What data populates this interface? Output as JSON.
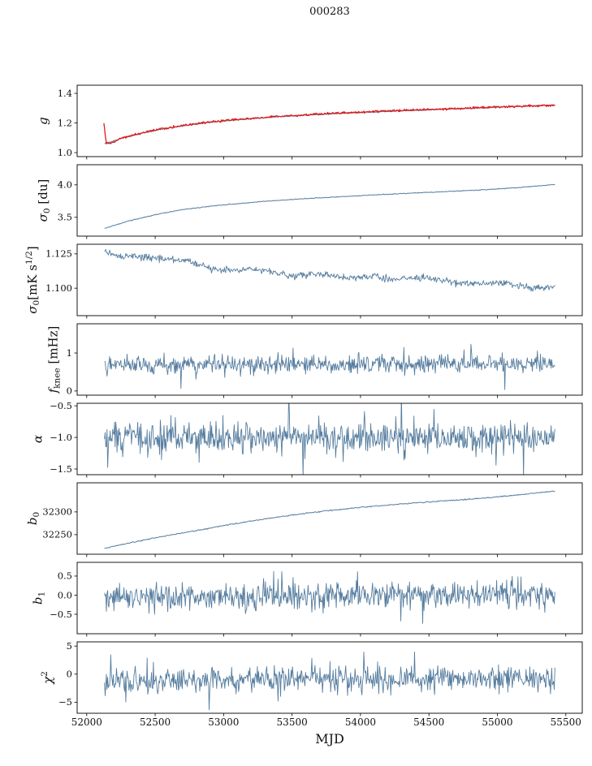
{
  "title": "000283",
  "chart_data": {
    "type": "line",
    "title": "000283",
    "xlabel": "MJD",
    "xlim": [
      51930,
      55620
    ],
    "x_data_range": [
      52130,
      55420
    ],
    "xticks": [
      {
        "v": 52000,
        "label": "52000"
      },
      {
        "v": 52500,
        "label": "52500"
      },
      {
        "v": 53000,
        "label": "53000"
      },
      {
        "v": 53500,
        "label": "53500"
      },
      {
        "v": 54000,
        "label": "54000"
      },
      {
        "v": 54500,
        "label": "54500"
      },
      {
        "v": 55000,
        "label": "55000"
      },
      {
        "v": 55500,
        "label": "55500"
      }
    ],
    "panels": [
      {
        "id": "g",
        "ylabel": [
          {
            "t": "g",
            "i": true
          }
        ],
        "ylim": [
          0.973,
          1.455
        ],
        "yticks": [
          {
            "v": 1.0,
            "label": "1.0"
          },
          {
            "v": 1.2,
            "label": "1.2"
          },
          {
            "v": 1.4,
            "label": "1.4"
          }
        ],
        "series": [
          {
            "name": "gain-model",
            "color": "#567d9f",
            "width": 1.0,
            "noise": 0.0015,
            "n": 500,
            "trend": [
              [
                52130,
                1.06
              ],
              [
                52250,
                1.095
              ],
              [
                52400,
                1.13
              ],
              [
                52550,
                1.158
              ],
              [
                52700,
                1.18
              ],
              [
                52850,
                1.198
              ],
              [
                53000,
                1.213
              ],
              [
                53200,
                1.228
              ],
              [
                53400,
                1.242
              ],
              [
                53600,
                1.252
              ],
              [
                53800,
                1.262
              ],
              [
                54000,
                1.27
              ],
              [
                54200,
                1.278
              ],
              [
                54400,
                1.285
              ],
              [
                54600,
                1.292
              ],
              [
                54800,
                1.299
              ],
              [
                55000,
                1.306
              ],
              [
                55200,
                1.313
              ],
              [
                55420,
                1.322
              ]
            ]
          },
          {
            "name": "gain-data",
            "color": "#dd1c1c",
            "width": 1.3,
            "noise": 0.0035,
            "n": 700,
            "trend": [
              [
                52125,
                1.205
              ],
              [
                52133,
                1.13
              ],
              [
                52142,
                1.065
              ],
              [
                52170,
                1.058
              ],
              [
                52250,
                1.098
              ],
              [
                52400,
                1.133
              ],
              [
                52550,
                1.161
              ],
              [
                52700,
                1.183
              ],
              [
                52850,
                1.201
              ],
              [
                53000,
                1.216
              ],
              [
                53200,
                1.231
              ],
              [
                53400,
                1.245
              ],
              [
                53600,
                1.255
              ],
              [
                53800,
                1.265
              ],
              [
                54000,
                1.273
              ],
              [
                54200,
                1.281
              ],
              [
                54400,
                1.288
              ],
              [
                54600,
                1.295
              ],
              [
                54800,
                1.302
              ],
              [
                55000,
                1.308
              ],
              [
                55200,
                1.314
              ],
              [
                55420,
                1.319
              ]
            ]
          }
        ]
      },
      {
        "id": "sigma0-du",
        "ylabel": [
          {
            "t": "σ",
            "i": true
          },
          {
            "t": "0",
            "s": "sub"
          },
          {
            "t": " [du]"
          }
        ],
        "ylim": [
          3.21,
          4.31
        ],
        "yticks": [
          {
            "v": 3.5,
            "label": "3.5"
          },
          {
            "v": 4.0,
            "label": "4.0"
          }
        ],
        "series": [
          {
            "name": "sigma0-du",
            "color": "#567d9f",
            "width": 1.0,
            "noise": 0.003,
            "n": 600,
            "trend": [
              [
                52130,
                3.33
              ],
              [
                52300,
                3.44
              ],
              [
                52500,
                3.54
              ],
              [
                52700,
                3.62
              ],
              [
                52900,
                3.67
              ],
              [
                53100,
                3.71
              ],
              [
                53300,
                3.745
              ],
              [
                53500,
                3.775
              ],
              [
                53700,
                3.8
              ],
              [
                53900,
                3.822
              ],
              [
                54100,
                3.845
              ],
              [
                54300,
                3.866
              ],
              [
                54500,
                3.885
              ],
              [
                54700,
                3.905
              ],
              [
                54900,
                3.925
              ],
              [
                55100,
                3.95
              ],
              [
                55300,
                3.985
              ],
              [
                55420,
                4.005
              ]
            ]
          }
        ]
      },
      {
        "id": "sigma0-mks",
        "ylabel": [
          {
            "t": "σ",
            "i": true
          },
          {
            "t": "0",
            "s": "sub"
          },
          {
            "t": "[mK s"
          },
          {
            "t": "1/2",
            "s": "sup"
          },
          {
            "t": "]"
          }
        ],
        "ylim": [
          1.08,
          1.132
        ],
        "yticks": [
          {
            "v": 1.1,
            "label": "1.100"
          },
          {
            "v": 1.125,
            "label": "1.125"
          }
        ],
        "series": [
          {
            "name": "sigma0-mks",
            "color": "#567d9f",
            "width": 0.9,
            "noise": 0.0012,
            "n": 700,
            "trend": [
              [
                52130,
                1.1265
              ],
              [
                52250,
                1.1238
              ],
              [
                52400,
                1.1228
              ],
              [
                52550,
                1.1218
              ],
              [
                52650,
                1.1208
              ],
              [
                52750,
                1.1198
              ],
              [
                52900,
                1.114
              ],
              [
                53050,
                1.1128
              ],
              [
                53200,
                1.1138
              ],
              [
                53350,
                1.1118
              ],
              [
                53500,
                1.1088
              ],
              [
                53650,
                1.1105
              ],
              [
                53800,
                1.109
              ],
              [
                53950,
                1.1075
              ],
              [
                54100,
                1.109
              ],
              [
                54250,
                1.106
              ],
              [
                54400,
                1.1075
              ],
              [
                54550,
                1.1065
              ],
              [
                54700,
                1.104
              ],
              [
                54850,
                1.1035
              ],
              [
                55000,
                1.104
              ],
              [
                55150,
                1.1025
              ],
              [
                55250,
                1.1
              ],
              [
                55350,
                1.1005
              ],
              [
                55420,
                1.101
              ]
            ]
          }
        ]
      },
      {
        "id": "fknee",
        "ylabel": [
          {
            "t": "f",
            "i": true
          },
          {
            "t": "knee",
            "s": "sub"
          },
          {
            "t": " [mHz]"
          }
        ],
        "ylim": [
          -0.11,
          1.77
        ],
        "yticks": [
          {
            "v": 0,
            "label": "0"
          },
          {
            "v": 1,
            "label": "1"
          }
        ],
        "series": [
          {
            "name": "fknee",
            "color": "#567d9f",
            "width": 0.9,
            "noise": 0.115,
            "spikes": 0.05,
            "n": 720,
            "trend": [
              [
                52130,
                0.68
              ],
              [
                53500,
                0.7
              ],
              [
                55420,
                0.71
              ]
            ]
          }
        ]
      },
      {
        "id": "alpha",
        "ylabel": [
          {
            "t": "α",
            "i": true
          }
        ],
        "ylim": [
          -1.59,
          -0.46
        ],
        "yticks": [
          {
            "v": -1.5,
            "label": "−1.5"
          },
          {
            "v": -1.0,
            "label": "−1.0"
          },
          {
            "v": -0.5,
            "label": "−0.5"
          }
        ],
        "series": [
          {
            "name": "alpha",
            "color": "#567d9f",
            "width": 0.9,
            "noise": 0.115,
            "spikes": 0.06,
            "n": 720,
            "trend": [
              [
                52130,
                -1.02
              ],
              [
                53500,
                -1.0
              ],
              [
                55420,
                -1.0
              ]
            ]
          }
        ]
      },
      {
        "id": "b0",
        "ylabel": [
          {
            "t": "b",
            "i": true
          },
          {
            "t": "0",
            "s": "sub"
          }
        ],
        "ylim": [
          32207,
          32364
        ],
        "yticks": [
          {
            "v": 32250,
            "label": "32250"
          },
          {
            "v": 32300,
            "label": "32300"
          }
        ],
        "series": [
          {
            "name": "b0",
            "color": "#567d9f",
            "width": 1.0,
            "noise": 0.6,
            "n": 600,
            "trend": [
              [
                52130,
                32220
              ],
              [
                52300,
                32231
              ],
              [
                52500,
                32243
              ],
              [
                52700,
                32254
              ],
              [
                52900,
                32264
              ],
              [
                53000,
                32270
              ],
              [
                53200,
                32280
              ],
              [
                53400,
                32289
              ],
              [
                53600,
                32297
              ],
              [
                53800,
                32304
              ],
              [
                54000,
                32310
              ],
              [
                54200,
                32315
              ],
              [
                54400,
                32320
              ],
              [
                54600,
                32324
              ],
              [
                54800,
                32328
              ],
              [
                55000,
                32333
              ],
              [
                55200,
                32339
              ],
              [
                55420,
                32346
              ]
            ]
          }
        ]
      },
      {
        "id": "b1",
        "ylabel": [
          {
            "t": "b",
            "i": true
          },
          {
            "t": "1",
            "s": "sub"
          }
        ],
        "ylim": [
          -1.01,
          0.86
        ],
        "yticks": [
          {
            "v": -0.5,
            "label": "−0.5"
          },
          {
            "v": 0.0,
            "label": "0.0"
          },
          {
            "v": 0.5,
            "label": "0.5"
          }
        ],
        "series": [
          {
            "name": "b1",
            "color": "#567d9f",
            "width": 0.9,
            "noise": 0.17,
            "spikes": 0.06,
            "n": 720,
            "trend": [
              [
                52130,
                -0.08
              ],
              [
                53200,
                -0.05
              ],
              [
                54200,
                0.0
              ],
              [
                55420,
                0.02
              ]
            ]
          }
        ]
      },
      {
        "id": "chi2",
        "ylabel": [
          {
            "t": "χ",
            "i": true
          },
          {
            "t": "2",
            "s": "sup"
          }
        ],
        "ylim": [
          -6.97,
          5.75
        ],
        "yticks": [
          {
            "v": -5,
            "label": "−5"
          },
          {
            "v": 0,
            "label": "0"
          },
          {
            "v": 5,
            "label": "5"
          }
        ],
        "series": [
          {
            "name": "chi2",
            "color": "#567d9f",
            "width": 0.9,
            "noise": 1.05,
            "spikes": 0.05,
            "n": 720,
            "trend": [
              [
                52130,
                -1.2
              ],
              [
                53500,
                -0.9
              ],
              [
                55420,
                -0.8
              ]
            ]
          }
        ]
      }
    ]
  }
}
